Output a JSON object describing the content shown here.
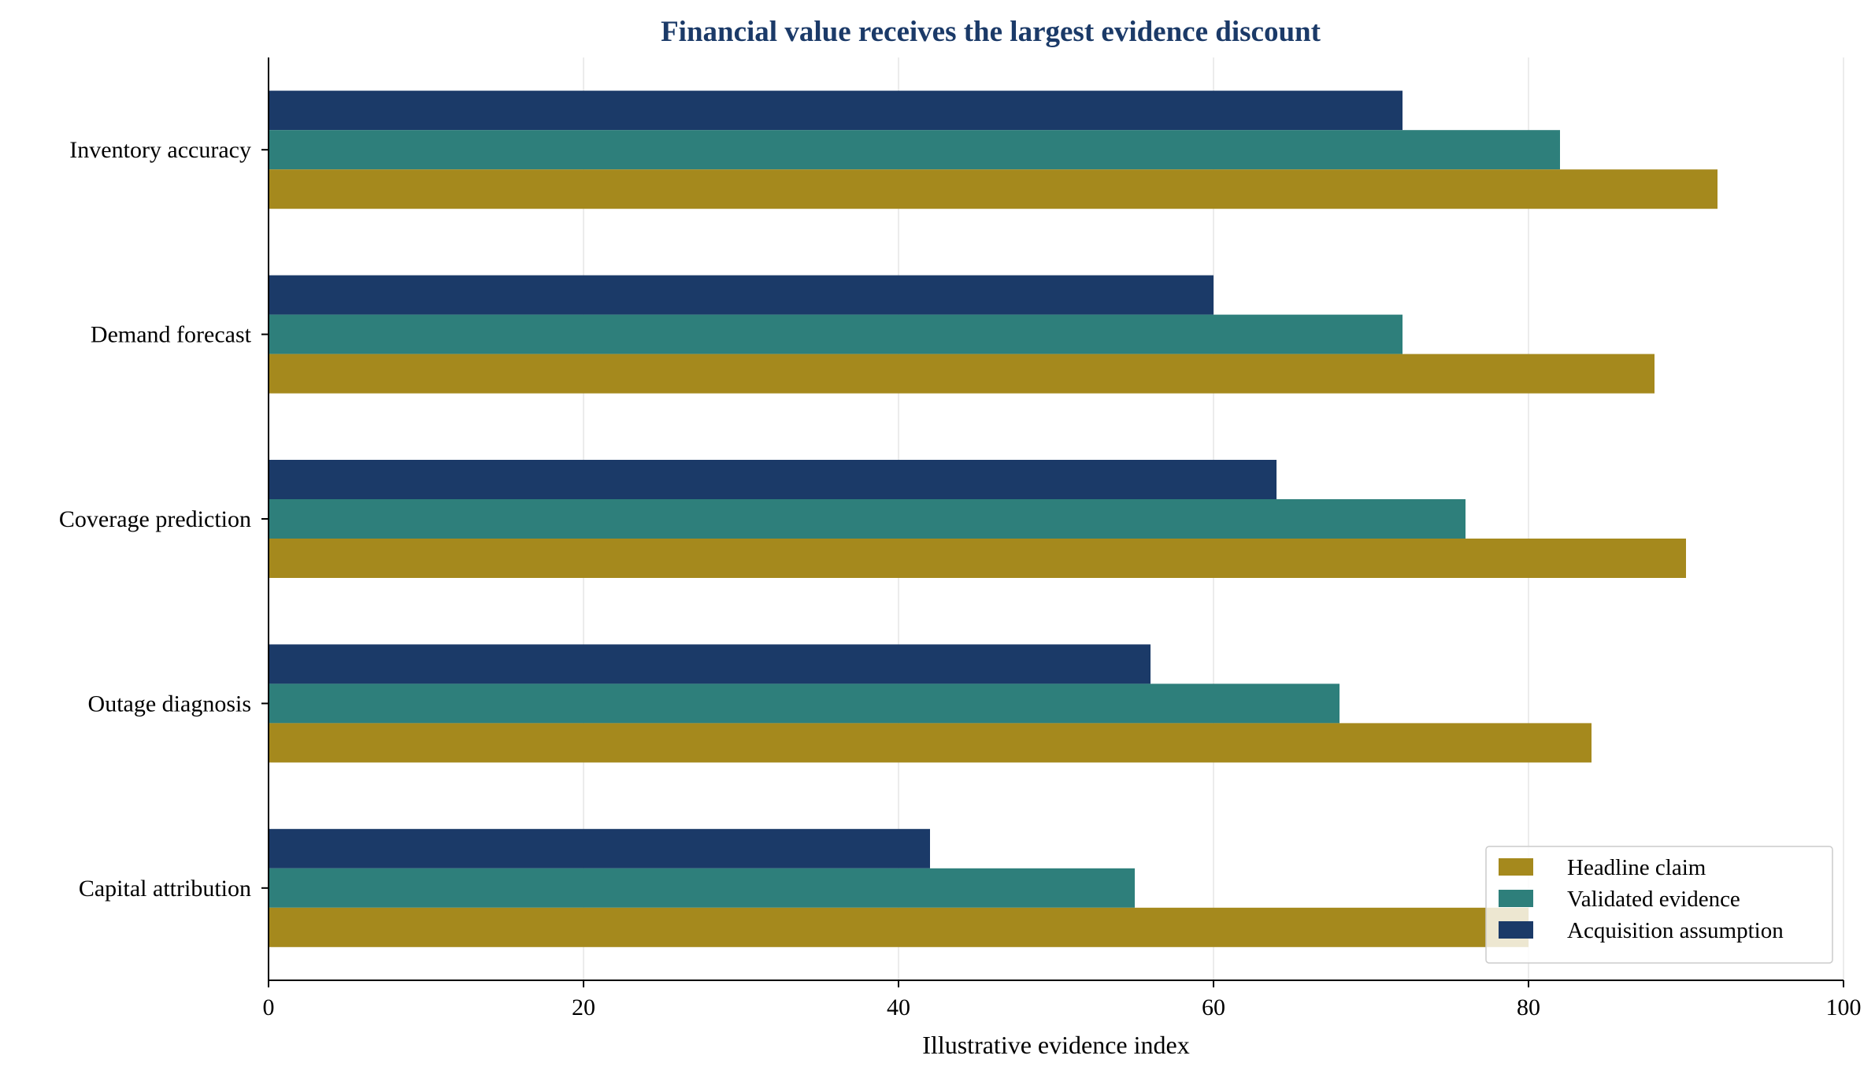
{
  "chart_data": {
    "type": "bar",
    "orientation": "horizontal",
    "title": "Financial value receives the largest evidence discount",
    "xlabel": "Illustrative evidence index",
    "ylabel": "",
    "xlim": [
      0,
      100
    ],
    "xticks": [
      0,
      20,
      40,
      60,
      80,
      100
    ],
    "grid": "vertical",
    "legend_position": "bottom-right",
    "categories": [
      "Inventory accuracy",
      "Demand forecast",
      "Coverage prediction",
      "Outage diagnosis",
      "Capital attribution"
    ],
    "series": [
      {
        "name": "Headline claim",
        "color": "#a5891d",
        "values": [
          92,
          88,
          90,
          84,
          80
        ]
      },
      {
        "name": "Validated evidence",
        "color": "#2e7f7b",
        "values": [
          82,
          72,
          76,
          68,
          55
        ]
      },
      {
        "name": "Acquisition assumption",
        "color": "#1b3a68",
        "values": [
          72,
          60,
          64,
          56,
          42
        ]
      }
    ],
    "title_color": "#1b3a68"
  }
}
